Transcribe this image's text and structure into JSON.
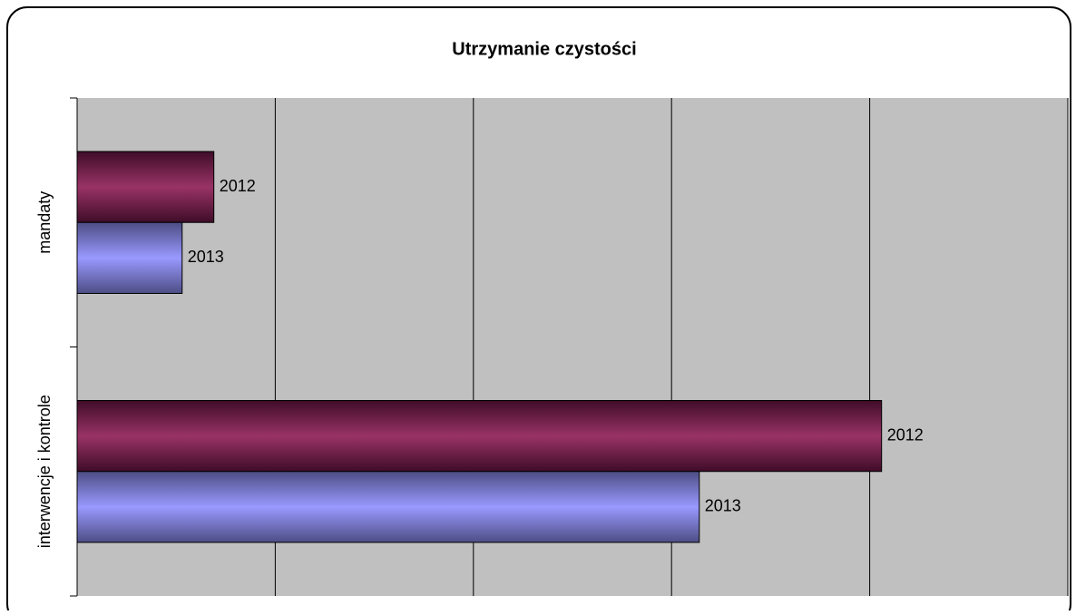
{
  "chart_data": {
    "type": "bar",
    "orientation": "horizontal",
    "title": "Utrzymanie czystości",
    "categories": [
      "mandaty",
      "interwencje i kontrole"
    ],
    "series": [
      {
        "name": "2012",
        "color": "#993366",
        "values": [
          69,
          406
        ]
      },
      {
        "name": "2013",
        "color": "#9999ff",
        "values": [
          53,
          314
        ]
      }
    ],
    "xlim": [
      0,
      500
    ],
    "xticks": [
      0,
      100,
      200,
      300,
      400,
      500
    ],
    "tick_labels": false,
    "grid": true,
    "legend": false
  }
}
